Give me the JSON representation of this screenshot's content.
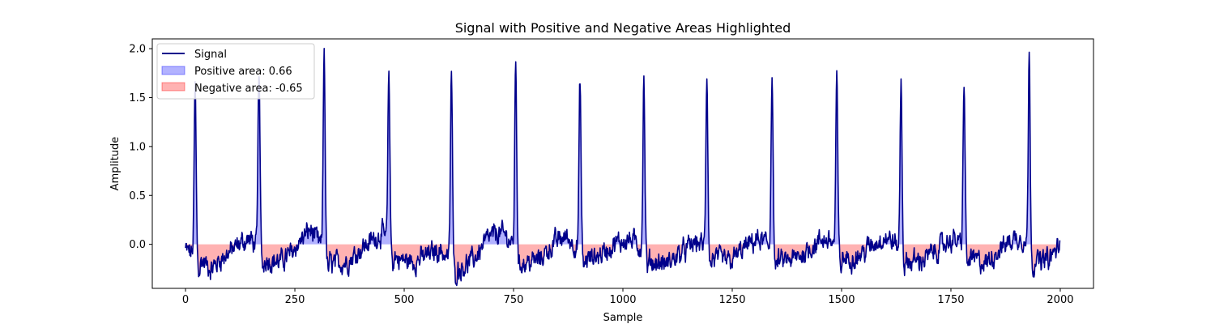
{
  "chart_data": {
    "type": "line",
    "title": "Signal with Positive and Negative Areas Highlighted",
    "xlabel": "Sample",
    "ylabel": "Amplitude",
    "xlim": [
      -76,
      2076
    ],
    "ylim": [
      -0.45,
      2.1
    ],
    "xticks": [
      0,
      250,
      500,
      750,
      1000,
      1250,
      1500,
      1750,
      2000
    ],
    "xtick_labels": [
      "0",
      "250",
      "500",
      "750",
      "1000",
      "1250",
      "1500",
      "1750",
      "2000"
    ],
    "yticks": [
      0.0,
      0.5,
      1.0,
      1.5,
      2.0
    ],
    "ytick_labels": [
      "0.0",
      "0.5",
      "1.0",
      "1.5",
      "2.0"
    ],
    "grid": false,
    "legend_position": "top-left",
    "legend": [
      {
        "label": "Signal",
        "kind": "line",
        "color": "#00008b"
      },
      {
        "label": "Positive area: 0.66",
        "kind": "patch",
        "color": "#0000ff"
      },
      {
        "label": "Negative area: -0.65",
        "kind": "patch",
        "color": "#ff0000"
      }
    ],
    "series": [
      {
        "name": "Signal",
        "color": "#00008b",
        "n_samples": 2000,
        "peak_samples": [
          22,
          168,
          317,
          465,
          608,
          755,
          902,
          1048,
          1192,
          1341,
          1489,
          1636,
          1780,
          1929
        ],
        "peak_values": [
          1.6,
          1.8,
          2.0,
          1.76,
          1.78,
          1.87,
          1.68,
          1.69,
          1.75,
          1.78,
          1.68,
          1.67,
          1.67,
          1.91
        ],
        "baseline_points": [
          [
            0,
            -0.05
          ],
          [
            40,
            -0.18
          ],
          [
            60,
            -0.25
          ],
          [
            80,
            -0.15
          ],
          [
            110,
            -0.05
          ],
          [
            130,
            0.03
          ],
          [
            150,
            0.05
          ],
          [
            185,
            -0.15
          ],
          [
            215,
            -0.18
          ],
          [
            240,
            -0.1
          ],
          [
            265,
            0.05
          ],
          [
            285,
            0.15
          ],
          [
            300,
            0.05
          ],
          [
            335,
            -0.2
          ],
          [
            370,
            -0.18
          ],
          [
            400,
            -0.05
          ],
          [
            430,
            0.05
          ],
          [
            450,
            0.12
          ],
          [
            485,
            -0.15
          ],
          [
            520,
            -0.18
          ],
          [
            550,
            -0.12
          ],
          [
            580,
            -0.05
          ],
          [
            625,
            -0.25
          ],
          [
            660,
            -0.15
          ],
          [
            690,
            0.05
          ],
          [
            715,
            0.12
          ],
          [
            735,
            0.08
          ],
          [
            775,
            -0.2
          ],
          [
            810,
            -0.15
          ],
          [
            845,
            0.02
          ],
          [
            870,
            0.08
          ],
          [
            885,
            0.02
          ],
          [
            920,
            -0.15
          ],
          [
            950,
            -0.1
          ],
          [
            980,
            0.0
          ],
          [
            1010,
            0.05
          ],
          [
            1030,
            0.02
          ],
          [
            1068,
            -0.18
          ],
          [
            1100,
            -0.2
          ],
          [
            1130,
            -0.1
          ],
          [
            1160,
            0.0
          ],
          [
            1175,
            0.02
          ],
          [
            1212,
            -0.15
          ],
          [
            1245,
            -0.18
          ],
          [
            1275,
            -0.05
          ],
          [
            1305,
            0.05
          ],
          [
            1325,
            0.02
          ],
          [
            1360,
            -0.18
          ],
          [
            1395,
            -0.15
          ],
          [
            1425,
            -0.05
          ],
          [
            1455,
            0.05
          ],
          [
            1475,
            0.04
          ],
          [
            1508,
            -0.15
          ],
          [
            1540,
            -0.12
          ],
          [
            1570,
            0.0
          ],
          [
            1600,
            0.08
          ],
          [
            1620,
            0.02
          ],
          [
            1655,
            -0.18
          ],
          [
            1690,
            -0.15
          ],
          [
            1720,
            -0.05
          ],
          [
            1750,
            0.05
          ],
          [
            1765,
            0.03
          ],
          [
            1800,
            -0.15
          ],
          [
            1830,
            -0.2
          ],
          [
            1860,
            -0.05
          ],
          [
            1890,
            0.05
          ],
          [
            1910,
            0.08
          ],
          [
            1950,
            -0.18
          ],
          [
            1975,
            -0.15
          ],
          [
            2000,
            0.0
          ]
        ]
      }
    ],
    "fill_positive_color": "#0000ff",
    "fill_negative_color": "#ff0000"
  }
}
